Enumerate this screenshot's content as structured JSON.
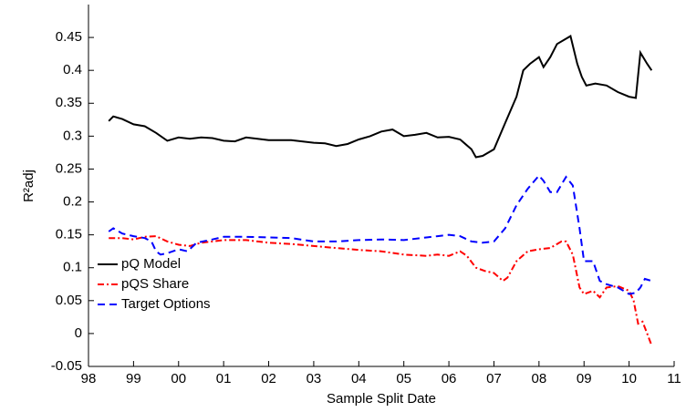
{
  "chart_data": {
    "type": "line",
    "xlabel": "Sample Split Date",
    "ylabel": "R²adj",
    "xlim": [
      98,
      111
    ],
    "ylim": [
      -0.05,
      0.5
    ],
    "xticks": [
      98,
      99,
      {
        "value": 100,
        "label": "00"
      },
      {
        "value": 101,
        "label": "01"
      },
      {
        "value": 102,
        "label": "02"
      },
      {
        "value": 103,
        "label": "03"
      },
      {
        "value": 104,
        "label": "04"
      },
      {
        "value": 105,
        "label": "05"
      },
      {
        "value": 106,
        "label": "06"
      },
      {
        "value": 107,
        "label": "07"
      },
      {
        "value": 108,
        "label": "08"
      },
      {
        "value": 109,
        "label": "09"
      },
      {
        "value": 110,
        "label": "10"
      },
      {
        "value": 111,
        "label": "11"
      }
    ],
    "yticks": [
      -0.05,
      0,
      0.05,
      0.1,
      0.15,
      0.2,
      0.25,
      0.3,
      0.35,
      0.4,
      0.45
    ],
    "legend": "lower-left",
    "series": [
      {
        "name": "pQ Model",
        "color": "#000000",
        "style": "solid",
        "x": [
          98.45,
          98.55,
          98.75,
          99,
          99.25,
          99.5,
          99.75,
          100,
          100.25,
          100.5,
          100.75,
          101,
          101.25,
          101.5,
          101.75,
          102,
          102.5,
          103,
          103.25,
          103.5,
          103.75,
          104,
          104.25,
          104.5,
          104.75,
          105,
          105.25,
          105.5,
          105.75,
          106,
          106.25,
          106.5,
          106.6,
          106.75,
          107,
          107.25,
          107.5,
          107.65,
          107.8,
          108,
          108.1,
          108.25,
          108.4,
          108.7,
          108.85,
          108.95,
          109.05,
          109.25,
          109.5,
          109.75,
          110,
          110.15,
          110.25,
          110.4,
          110.5
        ],
        "values": [
          0.323,
          0.33,
          0.326,
          0.318,
          0.315,
          0.305,
          0.293,
          0.298,
          0.296,
          0.298,
          0.297,
          0.293,
          0.292,
          0.298,
          0.296,
          0.294,
          0.294,
          0.29,
          0.289,
          0.285,
          0.288,
          0.295,
          0.3,
          0.307,
          0.31,
          0.3,
          0.302,
          0.305,
          0.298,
          0.299,
          0.295,
          0.28,
          0.268,
          0.27,
          0.28,
          0.32,
          0.36,
          0.4,
          0.41,
          0.42,
          0.405,
          0.42,
          0.44,
          0.452,
          0.41,
          0.39,
          0.377,
          0.38,
          0.377,
          0.367,
          0.36,
          0.358,
          0.427,
          0.41,
          0.4
        ]
      },
      {
        "name": "pQS Share",
        "color": "#ff0000",
        "style": "dashdot",
        "x": [
          98.45,
          98.75,
          99,
          99.25,
          99.5,
          99.75,
          100,
          100.25,
          100.5,
          100.75,
          101,
          101.5,
          102,
          102.5,
          103,
          103.5,
          104,
          104.5,
          105,
          105.5,
          105.75,
          106,
          106.25,
          106.4,
          106.6,
          106.8,
          107,
          107.2,
          107.3,
          107.5,
          107.75,
          108,
          108.25,
          108.5,
          108.6,
          108.75,
          108.9,
          109,
          109.2,
          109.35,
          109.5,
          109.75,
          110,
          110.1,
          110.2,
          110.3,
          110.4,
          110.5
        ],
        "values": [
          0.145,
          0.145,
          0.143,
          0.147,
          0.148,
          0.14,
          0.135,
          0.133,
          0.138,
          0.14,
          0.142,
          0.142,
          0.138,
          0.136,
          0.133,
          0.13,
          0.127,
          0.125,
          0.12,
          0.118,
          0.12,
          0.118,
          0.125,
          0.118,
          0.1,
          0.095,
          0.092,
          0.08,
          0.085,
          0.11,
          0.125,
          0.128,
          0.13,
          0.14,
          0.14,
          0.12,
          0.07,
          0.06,
          0.065,
          0.055,
          0.07,
          0.072,
          0.065,
          0.05,
          0.015,
          0.018,
          0,
          -0.018
        ]
      },
      {
        "name": "Target Options",
        "color": "#0000ff",
        "style": "dashed",
        "x": [
          98.45,
          98.55,
          98.75,
          99,
          99.25,
          99.4,
          99.5,
          99.6,
          99.75,
          100,
          100.2,
          100.4,
          100.75,
          101,
          101.5,
          102,
          102.5,
          103,
          103.5,
          104,
          104.5,
          105,
          105.5,
          105.75,
          106,
          106.25,
          106.5,
          106.75,
          107,
          107.25,
          107.5,
          107.75,
          108,
          108.1,
          108.25,
          108.4,
          108.6,
          108.75,
          108.9,
          109,
          109.2,
          109.35,
          109.5,
          109.75,
          110,
          110.15,
          110.25,
          110.35,
          110.5
        ],
        "values": [
          0.155,
          0.16,
          0.152,
          0.148,
          0.145,
          0.14,
          0.125,
          0.12,
          0.122,
          0.128,
          0.125,
          0.138,
          0.143,
          0.147,
          0.147,
          0.146,
          0.145,
          0.14,
          0.14,
          0.142,
          0.143,
          0.142,
          0.146,
          0.148,
          0.15,
          0.148,
          0.14,
          0.138,
          0.14,
          0.16,
          0.195,
          0.22,
          0.24,
          0.232,
          0.215,
          0.215,
          0.238,
          0.225,
          0.16,
          0.11,
          0.11,
          0.08,
          0.075,
          0.07,
          0.06,
          0.062,
          0.07,
          0.083,
          0.08
        ]
      }
    ]
  }
}
